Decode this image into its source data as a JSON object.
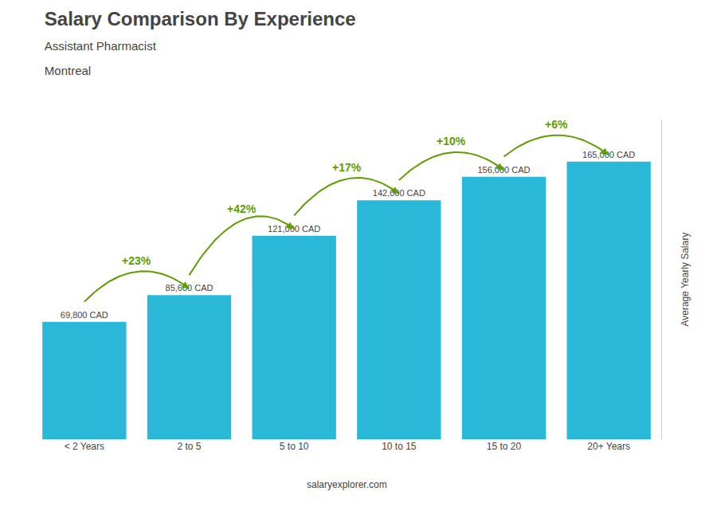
{
  "chart_data": {
    "type": "bar",
    "title": "Salary Comparison By Experience",
    "subtitle": [
      "Assistant Pharmacist",
      "Montreal"
    ],
    "ylabel": "Average Yearly Salary",
    "categories": [
      "< 2 Years",
      "2 to 5",
      "5 to 10",
      "10 to 15",
      "15 to 20",
      "20+ Years"
    ],
    "values": [
      69800,
      85600,
      121000,
      142000,
      156000,
      165000
    ],
    "value_labels": [
      "69,800 CAD",
      "85,600 CAD",
      "121,000 CAD",
      "142,000 CAD",
      "156,000 CAD",
      "165,000 CAD"
    ],
    "data_labels": true,
    "color": "#29B8D8",
    "ylim": [
      0,
      190000
    ],
    "tick_labels": "x",
    "grid": false,
    "annotations": [
      {
        "text": "+23%",
        "from": "< 2 Years",
        "to": "2 to 5",
        "color": "#5E9E00"
      },
      {
        "text": "+42%",
        "from": "2 to 5",
        "to": "5 to 10",
        "color": "#5E9E00"
      },
      {
        "text": "+17%",
        "from": "5 to 10",
        "to": "10 to 15",
        "color": "#5E9E00"
      },
      {
        "text": "+10%",
        "from": "10 to 15",
        "to": "15 to 20",
        "color": "#5E9E00"
      },
      {
        "text": "+6%",
        "from": "15 to 20",
        "to": "20+ Years",
        "color": "#5E9E00"
      },
      {
        "text": "salaryexplorer.com"
      }
    ]
  }
}
